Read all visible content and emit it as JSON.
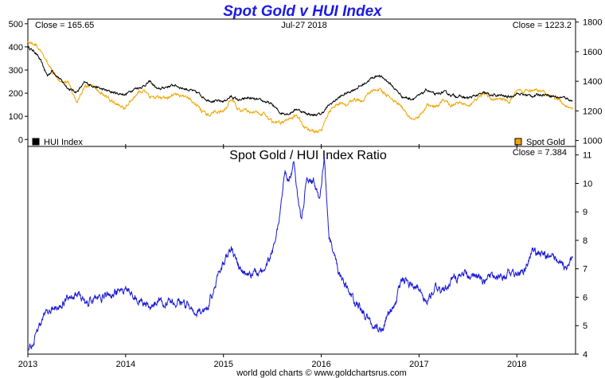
{
  "chart_data": [
    {
      "type": "line",
      "title": "Spot Gold v HUI Index",
      "date_label": "Jul-27 2018",
      "x_ticks": [
        "2013",
        "2014",
        "2015",
        "2016",
        "2017",
        "2018"
      ],
      "left_axis": {
        "ylim": [
          -30,
          520
        ],
        "ticks": [
          "0",
          "100",
          "200",
          "300",
          "400",
          "500"
        ]
      },
      "right_axis": {
        "ylim": [
          960,
          1820
        ],
        "ticks": [
          "1000",
          "1200",
          "1400",
          "1600",
          "1800"
        ]
      },
      "left_close_label": "Close = 165.65",
      "right_close_label": "Close = 1223.2",
      "series": [
        {
          "name": "HUI Index",
          "color": "#000000",
          "axis": "left",
          "points": [
            [
              2013.0,
              400
            ],
            [
              2013.08,
              375
            ],
            [
              2013.13,
              340
            ],
            [
              2013.2,
              275
            ],
            [
              2013.25,
              298
            ],
            [
              2013.33,
              260
            ],
            [
              2013.42,
              218
            ],
            [
              2013.5,
              205
            ],
            [
              2013.58,
              245
            ],
            [
              2013.67,
              232
            ],
            [
              2013.75,
              218
            ],
            [
              2013.83,
              208
            ],
            [
              2013.92,
              198
            ],
            [
              2014.0,
              195
            ],
            [
              2014.08,
              218
            ],
            [
              2014.17,
              228
            ],
            [
              2014.25,
              250
            ],
            [
              2014.33,
              215
            ],
            [
              2014.42,
              228
            ],
            [
              2014.5,
              235
            ],
            [
              2014.58,
              222
            ],
            [
              2014.67,
              212
            ],
            [
              2014.75,
              198
            ],
            [
              2014.83,
              172
            ],
            [
              2014.92,
              165
            ],
            [
              2015.0,
              165
            ],
            [
              2015.08,
              185
            ],
            [
              2015.17,
              168
            ],
            [
              2015.25,
              180
            ],
            [
              2015.33,
              172
            ],
            [
              2015.42,
              165
            ],
            [
              2015.5,
              150
            ],
            [
              2015.58,
              115
            ],
            [
              2015.67,
              112
            ],
            [
              2015.75,
              132
            ],
            [
              2015.83,
              115
            ],
            [
              2015.92,
              105
            ],
            [
              2016.0,
              110
            ],
            [
              2016.08,
              148
            ],
            [
              2016.17,
              178
            ],
            [
              2016.25,
              198
            ],
            [
              2016.33,
              215
            ],
            [
              2016.42,
              235
            ],
            [
              2016.5,
              260
            ],
            [
              2016.58,
              278
            ],
            [
              2016.67,
              255
            ],
            [
              2016.75,
              220
            ],
            [
              2016.83,
              185
            ],
            [
              2016.92,
              175
            ],
            [
              2017.0,
              188
            ],
            [
              2017.08,
              215
            ],
            [
              2017.17,
              192
            ],
            [
              2017.25,
              205
            ],
            [
              2017.33,
              192
            ],
            [
              2017.42,
              185
            ],
            [
              2017.5,
              178
            ],
            [
              2017.58,
              190
            ],
            [
              2017.67,
              200
            ],
            [
              2017.75,
              190
            ],
            [
              2017.83,
              190
            ],
            [
              2017.92,
              183
            ],
            [
              2018.0,
              198
            ],
            [
              2018.08,
              193
            ],
            [
              2018.17,
              188
            ],
            [
              2018.25,
              195
            ],
            [
              2018.33,
              192
            ],
            [
              2018.42,
              182
            ],
            [
              2018.5,
              180
            ],
            [
              2018.57,
              165.65
            ]
          ]
        },
        {
          "name": "Spot Gold",
          "color": "#f0a500",
          "axis": "right",
          "points": [
            [
              2013.0,
              1670
            ],
            [
              2013.08,
              1650
            ],
            [
              2013.13,
              1600
            ],
            [
              2013.25,
              1470
            ],
            [
              2013.33,
              1410
            ],
            [
              2013.42,
              1390
            ],
            [
              2013.5,
              1250
            ],
            [
              2013.58,
              1370
            ],
            [
              2013.67,
              1360
            ],
            [
              2013.75,
              1320
            ],
            [
              2013.83,
              1280
            ],
            [
              2013.92,
              1240
            ],
            [
              2014.0,
              1220
            ],
            [
              2014.08,
              1290
            ],
            [
              2014.17,
              1340
            ],
            [
              2014.25,
              1290
            ],
            [
              2014.33,
              1290
            ],
            [
              2014.42,
              1280
            ],
            [
              2014.5,
              1320
            ],
            [
              2014.58,
              1300
            ],
            [
              2014.67,
              1270
            ],
            [
              2014.75,
              1220
            ],
            [
              2014.83,
              1170
            ],
            [
              2014.92,
              1200
            ],
            [
              2015.0,
              1190
            ],
            [
              2015.08,
              1280
            ],
            [
              2015.17,
              1200
            ],
            [
              2015.25,
              1200
            ],
            [
              2015.33,
              1190
            ],
            [
              2015.42,
              1180
            ],
            [
              2015.5,
              1120
            ],
            [
              2015.58,
              1120
            ],
            [
              2015.67,
              1140
            ],
            [
              2015.75,
              1170
            ],
            [
              2015.83,
              1090
            ],
            [
              2015.92,
              1060
            ],
            [
              2016.0,
              1070
            ],
            [
              2016.08,
              1200
            ],
            [
              2016.17,
              1250
            ],
            [
              2016.25,
              1240
            ],
            [
              2016.33,
              1280
            ],
            [
              2016.42,
              1270
            ],
            [
              2016.5,
              1330
            ],
            [
              2016.58,
              1350
            ],
            [
              2016.67,
              1310
            ],
            [
              2016.75,
              1270
            ],
            [
              2016.83,
              1220
            ],
            [
              2016.92,
              1140
            ],
            [
              2017.0,
              1160
            ],
            [
              2017.08,
              1240
            ],
            [
              2017.17,
              1220
            ],
            [
              2017.25,
              1270
            ],
            [
              2017.33,
              1240
            ],
            [
              2017.42,
              1260
            ],
            [
              2017.5,
              1230
            ],
            [
              2017.58,
              1280
            ],
            [
              2017.67,
              1320
            ],
            [
              2017.75,
              1280
            ],
            [
              2017.83,
              1280
            ],
            [
              2017.92,
              1260
            ],
            [
              2018.0,
              1330
            ],
            [
              2018.08,
              1330
            ],
            [
              2018.17,
              1330
            ],
            [
              2018.25,
              1340
            ],
            [
              2018.33,
              1300
            ],
            [
              2018.42,
              1280
            ],
            [
              2018.5,
              1240
            ],
            [
              2018.57,
              1223.2
            ]
          ]
        }
      ],
      "legend": "bottom"
    },
    {
      "type": "line",
      "title": "Spot Gold  /  HUI Index Ratio",
      "close_label": "Close = 7.384",
      "x_ticks": [
        "2013",
        "2014",
        "2015",
        "2016",
        "2017",
        "2018"
      ],
      "right_axis": {
        "ylim": [
          4,
          11.3
        ],
        "ticks": [
          "4",
          "5",
          "6",
          "7",
          "8",
          "9",
          "10",
          "11"
        ]
      },
      "series": [
        {
          "name": "Spot Gold / HUI Index Ratio",
          "color": "#1a1ad6",
          "points": [
            [
              2013.0,
              4.2
            ],
            [
              2013.05,
              4.4
            ],
            [
              2013.1,
              4.8
            ],
            [
              2013.17,
              5.4
            ],
            [
              2013.25,
              5.6
            ],
            [
              2013.33,
              5.8
            ],
            [
              2013.42,
              6.0
            ],
            [
              2013.5,
              6.1
            ],
            [
              2013.58,
              5.8
            ],
            [
              2013.67,
              5.9
            ],
            [
              2013.75,
              6.0
            ],
            [
              2013.83,
              6.1
            ],
            [
              2013.92,
              6.2
            ],
            [
              2014.0,
              6.3
            ],
            [
              2014.08,
              6.0
            ],
            [
              2014.17,
              5.8
            ],
            [
              2014.25,
              5.6
            ],
            [
              2014.33,
              5.9
            ],
            [
              2014.42,
              5.8
            ],
            [
              2014.5,
              5.9
            ],
            [
              2014.58,
              5.8
            ],
            [
              2014.67,
              5.6
            ],
            [
              2014.75,
              5.4
            ],
            [
              2014.83,
              5.6
            ],
            [
              2014.92,
              6.5
            ],
            [
              2015.0,
              7.2
            ],
            [
              2015.08,
              7.7
            ],
            [
              2015.17,
              7.0
            ],
            [
              2015.25,
              6.8
            ],
            [
              2015.33,
              6.9
            ],
            [
              2015.42,
              7.0
            ],
            [
              2015.5,
              7.6
            ],
            [
              2015.58,
              9.0
            ],
            [
              2015.63,
              10.5
            ],
            [
              2015.67,
              10.2
            ],
            [
              2015.72,
              10.8
            ],
            [
              2015.77,
              9.2
            ],
            [
              2015.8,
              8.7
            ],
            [
              2015.85,
              10.3
            ],
            [
              2015.92,
              10.1
            ],
            [
              2015.97,
              9.6
            ],
            [
              2016.0,
              9.8
            ],
            [
              2016.03,
              10.8
            ],
            [
              2016.08,
              8.2
            ],
            [
              2016.17,
              7.0
            ],
            [
              2016.25,
              6.4
            ],
            [
              2016.33,
              5.9
            ],
            [
              2016.42,
              5.5
            ],
            [
              2016.5,
              5.1
            ],
            [
              2016.58,
              4.9
            ],
            [
              2016.63,
              4.8
            ],
            [
              2016.67,
              5.2
            ],
            [
              2016.75,
              5.8
            ],
            [
              2016.83,
              6.6
            ],
            [
              2016.92,
              6.5
            ],
            [
              2017.0,
              6.3
            ],
            [
              2017.08,
              5.8
            ],
            [
              2017.17,
              6.3
            ],
            [
              2017.25,
              6.2
            ],
            [
              2017.33,
              6.5
            ],
            [
              2017.42,
              6.8
            ],
            [
              2017.5,
              6.8
            ],
            [
              2017.58,
              6.7
            ],
            [
              2017.67,
              6.6
            ],
            [
              2017.75,
              6.7
            ],
            [
              2017.83,
              6.7
            ],
            [
              2017.92,
              6.9
            ],
            [
              2018.0,
              6.7
            ],
            [
              2018.08,
              7.0
            ],
            [
              2018.17,
              7.6
            ],
            [
              2018.25,
              7.5
            ],
            [
              2018.33,
              7.4
            ],
            [
              2018.42,
              7.3
            ],
            [
              2018.5,
              7.1
            ],
            [
              2018.57,
              7.384
            ]
          ]
        }
      ]
    }
  ],
  "footer": "world gold charts © www.goldchartsrus.com"
}
